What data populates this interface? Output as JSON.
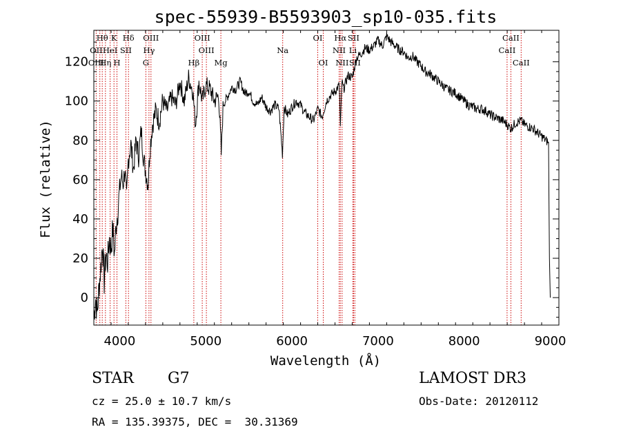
{
  "chart_data": {
    "type": "line",
    "title": "spec-55939-B5593903_sp10-035.fits",
    "xlabel": "Wavelength (Å)",
    "ylabel": "Flux (relative)",
    "xlim": [
      3700,
      9100
    ],
    "ylim": [
      -14,
      136
    ],
    "xticks": [
      4000,
      5000,
      6000,
      7000,
      8000,
      9000
    ],
    "yticks": [
      0,
      20,
      40,
      60,
      80,
      100,
      120
    ],
    "grid": false,
    "line_color": "#000000",
    "marker_color": "#cc0000",
    "series": [
      {
        "x": [
          3700,
          3720,
          3740,
          3760,
          3780,
          3800,
          3820,
          3840,
          3860,
          3880,
          3900,
          3920,
          3940,
          3960,
          3980,
          4000,
          4020,
          4040,
          4060,
          4080,
          4100,
          4130,
          4160,
          4190,
          4220,
          4250,
          4280,
          4310,
          4330,
          4350,
          4380,
          4420,
          4460,
          4500,
          4550,
          4600,
          4650,
          4700,
          4750,
          4800,
          4850,
          4880,
          4920,
          4960,
          5000,
          5050,
          5100,
          5150,
          5180,
          5200,
          5250,
          5300,
          5350,
          5400,
          5450,
          5500,
          5550,
          5600,
          5650,
          5700,
          5750,
          5800,
          5850,
          5890,
          5910,
          5950,
          6000,
          6050,
          6100,
          6150,
          6200,
          6250,
          6300,
          6350,
          6400,
          6450,
          6500,
          6550,
          6563,
          6580,
          6600,
          6650,
          6700,
          6750,
          6800,
          6850,
          6900,
          6950,
          7000,
          7050,
          7100,
          7150,
          7200,
          7250,
          7300,
          7350,
          7400,
          7450,
          7500,
          7550,
          7600,
          7650,
          7700,
          7750,
          7800,
          7850,
          7900,
          7950,
          8000,
          8050,
          8100,
          8150,
          8200,
          8250,
          8300,
          8350,
          8400,
          8450,
          8500,
          8542,
          8560,
          8600,
          8662,
          8700,
          8750,
          8800,
          8850,
          8900,
          8950,
          8980,
          8990,
          9000
        ],
        "y": [
          -10,
          0,
          -8,
          5,
          15,
          28,
          8,
          22,
          18,
          30,
          25,
          35,
          22,
          38,
          45,
          55,
          62,
          58,
          65,
          50,
          70,
          78,
          65,
          80,
          72,
          85,
          70,
          62,
          58,
          75,
          88,
          95,
          90,
          100,
          95,
          102,
          98,
          110,
          100,
          112,
          105,
          88,
          110,
          100,
          108,
          106,
          100,
          103,
          73,
          98,
          102,
          107,
          106,
          110,
          104,
          105,
          100,
          98,
          102,
          97,
          95,
          98,
          96,
          73,
          97,
          93,
          97,
          100,
          98,
          94,
          92,
          90,
          96,
          92,
          100,
          103,
          105,
          108,
          86,
          110,
          106,
          113,
          112,
          122,
          124,
          127,
          126,
          128,
          131,
          128,
          133,
          130,
          128,
          126,
          125,
          122,
          123,
          120,
          118,
          115,
          114,
          112,
          110,
          108,
          106,
          105,
          104,
          102,
          100,
          98,
          97,
          96,
          96,
          95,
          93,
          92,
          91,
          90,
          88,
          86,
          87,
          89,
          90,
          88,
          87,
          86,
          84,
          82,
          80,
          79,
          20,
          0
        ]
      }
    ],
    "lines_top": [
      {
        "label": "Hθ",
        "x": 3798
      },
      {
        "label": "K",
        "x": 3934
      },
      {
        "label": "Hδ",
        "x": 4102
      },
      {
        "label": "OIII",
        "x": 4363
      },
      {
        "label": "OIII",
        "x": 4959
      },
      {
        "label": "OI",
        "x": 6300
      },
      {
        "label": "Hα",
        "x": 6563
      },
      {
        "label": "SII",
        "x": 6716
      },
      {
        "label": "CaII",
        "x": 8542
      }
    ],
    "lines_mid": [
      {
        "label": "OII",
        "x": 3727
      },
      {
        "label": "HeI",
        "x": 3889
      },
      {
        "label": "SII",
        "x": 4072
      },
      {
        "label": "Hγ",
        "x": 4340
      },
      {
        "label": "OIII",
        "x": 5007
      },
      {
        "label": "Na",
        "x": 5893
      },
      {
        "label": "NII",
        "x": 6548
      },
      {
        "label": "Li",
        "x": 6708
      },
      {
        "label": "CaII",
        "x": 8498
      }
    ],
    "lines_low": [
      {
        "label": "OIII",
        "x": 3727
      },
      {
        "label": "Hη",
        "x": 3835
      },
      {
        "label": "H",
        "x": 3968
      },
      {
        "label": "G",
        "x": 4304
      },
      {
        "label": "Hβ",
        "x": 4861
      },
      {
        "label": "Mg",
        "x": 5175
      },
      {
        "label": "OI",
        "x": 6364
      },
      {
        "label": "NII",
        "x": 6583
      },
      {
        "label": "SII",
        "x": 6731
      },
      {
        "label": "CaII",
        "x": 8662
      }
    ],
    "red_lines": [
      3727,
      3770,
      3798,
      3835,
      3889,
      3934,
      3968,
      4072,
      4102,
      4304,
      4340,
      4363,
      4861,
      4959,
      5007,
      5175,
      5893,
      6300,
      6364,
      6548,
      6563,
      6583,
      6708,
      6716,
      6731,
      8498,
      8542,
      8662
    ]
  },
  "info": {
    "object_class": "STAR",
    "subclass": "G7",
    "survey": "LAMOST DR3",
    "cz": "cz = 25.0 ± 10.7 km/s",
    "obs_date": "Obs-Date: 20120112",
    "radec": "RA = 135.39375, DEC =  30.31369"
  }
}
